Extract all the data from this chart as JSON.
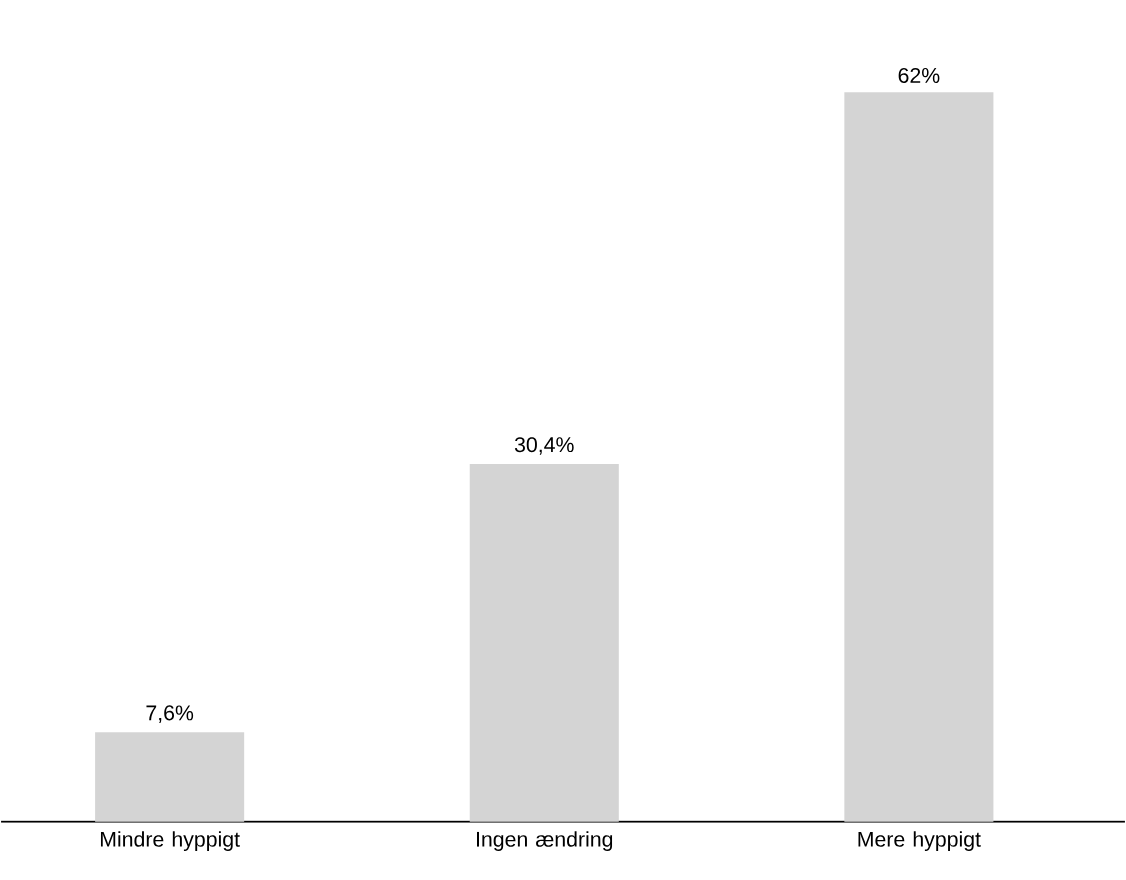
{
  "chart_data": {
    "type": "bar",
    "categories": [
      "Mindre hyppigt",
      "Ingen ændring",
      "Mere hyppigt"
    ],
    "values": [
      7.6,
      30.4,
      62
    ],
    "value_labels": [
      "7,6%",
      "30,4%",
      "62%"
    ],
    "color": "#d4d4d4"
  }
}
